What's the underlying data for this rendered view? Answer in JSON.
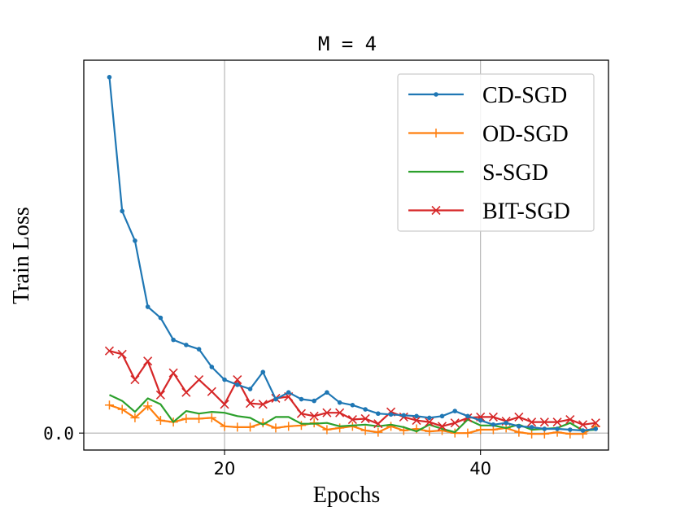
{
  "chart_data": {
    "type": "line",
    "title": "M = 4",
    "xlabel": "Epochs",
    "ylabel": "Train Loss",
    "xlim": [
      9,
      50
    ],
    "ylim": [
      -0.02,
      0.44
    ],
    "xticks": [
      20,
      40
    ],
    "yticks": [
      {
        "value": 0.0,
        "label": "0.0"
      }
    ],
    "grid": true,
    "legend_position": "top-right",
    "x": [
      11,
      12,
      13,
      14,
      15,
      16,
      17,
      18,
      19,
      20,
      21,
      22,
      23,
      24,
      25,
      26,
      27,
      28,
      29,
      30,
      31,
      32,
      33,
      34,
      35,
      36,
      37,
      38,
      39,
      40,
      41,
      42,
      43,
      44,
      45,
      46,
      47,
      48,
      49
    ],
    "series": [
      {
        "name": "CD-SGD",
        "color": "#1f77b4",
        "marker": "dot",
        "values": [
          0.42,
          0.262,
          0.227,
          0.149,
          0.136,
          0.11,
          0.104,
          0.099,
          0.078,
          0.063,
          0.057,
          0.052,
          0.072,
          0.04,
          0.048,
          0.04,
          0.038,
          0.048,
          0.036,
          0.033,
          0.028,
          0.023,
          0.022,
          0.021,
          0.02,
          0.018,
          0.02,
          0.026,
          0.02,
          0.015,
          0.01,
          0.012,
          0.008,
          0.007,
          0.005,
          0.005,
          0.004,
          0.003,
          0.005
        ]
      },
      {
        "name": "OD-SGD",
        "color": "#ff7f0e",
        "marker": "plus",
        "values": [
          0.033,
          0.028,
          0.018,
          0.032,
          0.015,
          0.013,
          0.017,
          0.017,
          0.018,
          0.008,
          0.007,
          0.007,
          0.012,
          0.006,
          0.008,
          0.009,
          0.012,
          0.004,
          0.006,
          0.008,
          0.003,
          0.001,
          0.008,
          0.003,
          0.005,
          0.002,
          0.003,
          0.0,
          0.0,
          0.004,
          0.004,
          0.006,
          0.001,
          -0.001,
          -0.001,
          0.001,
          -0.001,
          -0.001,
          0.008
        ]
      },
      {
        "name": "S-SGD",
        "color": "#2ca02c",
        "marker": "none",
        "values": [
          0.045,
          0.038,
          0.025,
          0.041,
          0.034,
          0.013,
          0.026,
          0.023,
          0.025,
          0.024,
          0.02,
          0.018,
          0.01,
          0.019,
          0.019,
          0.011,
          0.011,
          0.012,
          0.008,
          0.009,
          0.01,
          0.008,
          0.01,
          0.007,
          0.002,
          0.01,
          0.005,
          0.001,
          0.016,
          0.009,
          0.009,
          0.006,
          0.01,
          0.004,
          0.005,
          0.006,
          0.012,
          0.003,
          0.004
        ]
      },
      {
        "name": "BIT-SGD",
        "color": "#d62728",
        "marker": "x",
        "values": [
          0.097,
          0.093,
          0.063,
          0.085,
          0.045,
          0.071,
          0.048,
          0.063,
          0.049,
          0.034,
          0.063,
          0.035,
          0.034,
          0.041,
          0.043,
          0.023,
          0.02,
          0.024,
          0.024,
          0.016,
          0.017,
          0.011,
          0.025,
          0.019,
          0.015,
          0.013,
          0.008,
          0.012,
          0.018,
          0.019,
          0.019,
          0.014,
          0.019,
          0.013,
          0.013,
          0.013,
          0.016,
          0.01,
          0.012
        ]
      }
    ]
  }
}
